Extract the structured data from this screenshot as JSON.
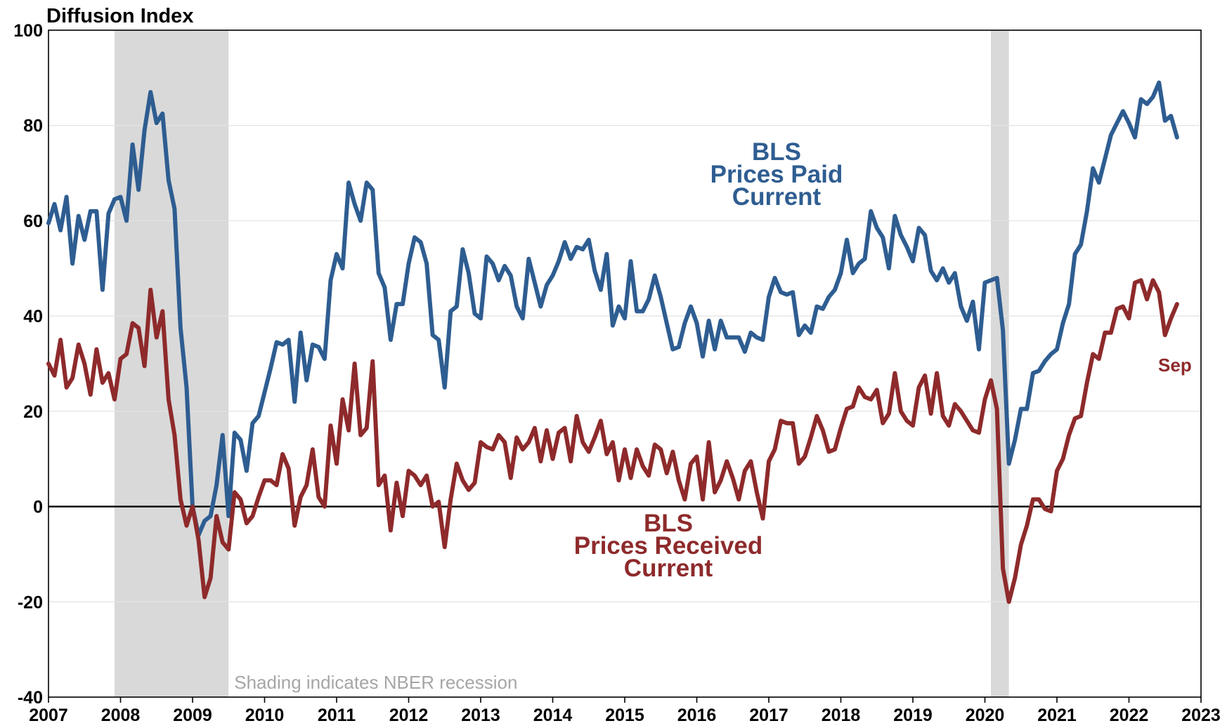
{
  "chart_data": {
    "type": "line",
    "title": "Diffusion Index",
    "xlim": [
      2007,
      2023
    ],
    "xticks": [
      2007,
      2008,
      2009,
      2010,
      2011,
      2012,
      2013,
      2014,
      2015,
      2016,
      2017,
      2018,
      2019,
      2020,
      2021,
      2022,
      2023
    ],
    "ylim": [
      -40,
      100
    ],
    "yticks": [
      -40,
      -20,
      0,
      20,
      40,
      60,
      80,
      100
    ],
    "grid": true,
    "recessions": [
      [
        2007.917,
        2009.5
      ],
      [
        2020.083,
        2020.333
      ]
    ],
    "recession_color": "#d9d9d9",
    "note": "Shading indicates NBER recession",
    "x": [
      2007,
      2007.083,
      2007.167,
      2007.25,
      2007.333,
      2007.417,
      2007.5,
      2007.583,
      2007.667,
      2007.75,
      2007.833,
      2007.917,
      2008,
      2008.083,
      2008.167,
      2008.25,
      2008.333,
      2008.417,
      2008.5,
      2008.583,
      2008.667,
      2008.75,
      2008.833,
      2008.917,
      2009,
      2009.083,
      2009.167,
      2009.25,
      2009.333,
      2009.417,
      2009.5,
      2009.583,
      2009.667,
      2009.75,
      2009.833,
      2009.917,
      2010,
      2010.083,
      2010.167,
      2010.25,
      2010.333,
      2010.417,
      2010.5,
      2010.583,
      2010.667,
      2010.75,
      2010.833,
      2010.917,
      2011,
      2011.083,
      2011.167,
      2011.25,
      2011.333,
      2011.417,
      2011.5,
      2011.583,
      2011.667,
      2011.75,
      2011.833,
      2011.917,
      2012,
      2012.083,
      2012.167,
      2012.25,
      2012.333,
      2012.417,
      2012.5,
      2012.583,
      2012.667,
      2012.75,
      2012.833,
      2012.917,
      2013,
      2013.083,
      2013.167,
      2013.25,
      2013.333,
      2013.417,
      2013.5,
      2013.583,
      2013.667,
      2013.75,
      2013.833,
      2013.917,
      2014,
      2014.083,
      2014.167,
      2014.25,
      2014.333,
      2014.417,
      2014.5,
      2014.583,
      2014.667,
      2014.75,
      2014.833,
      2014.917,
      2015,
      2015.083,
      2015.167,
      2015.25,
      2015.333,
      2015.417,
      2015.5,
      2015.583,
      2015.667,
      2015.75,
      2015.833,
      2015.917,
      2016,
      2016.083,
      2016.167,
      2016.25,
      2016.333,
      2016.417,
      2016.5,
      2016.583,
      2016.667,
      2016.75,
      2016.833,
      2016.917,
      2017,
      2017.083,
      2017.167,
      2017.25,
      2017.333,
      2017.417,
      2017.5,
      2017.583,
      2017.667,
      2017.75,
      2017.833,
      2017.917,
      2018,
      2018.083,
      2018.167,
      2018.25,
      2018.333,
      2018.417,
      2018.5,
      2018.583,
      2018.667,
      2018.75,
      2018.833,
      2018.917,
      2019,
      2019.083,
      2019.167,
      2019.25,
      2019.333,
      2019.417,
      2019.5,
      2019.583,
      2019.667,
      2019.75,
      2019.833,
      2019.917,
      2020,
      2020.083,
      2020.167,
      2020.25,
      2020.333,
      2020.417,
      2020.5,
      2020.583,
      2020.667,
      2020.75,
      2020.833,
      2020.917,
      2021,
      2021.083,
      2021.167,
      2021.25,
      2021.333,
      2021.417,
      2021.5,
      2021.583,
      2021.667,
      2021.75,
      2021.833,
      2021.917,
      2022,
      2022.083,
      2022.167,
      2022.25,
      2022.333,
      2022.417,
      2022.5,
      2022.583,
      2022.667
    ],
    "series": [
      {
        "name": [
          "BLS",
          "Prices Paid",
          "Current"
        ],
        "color": "#2e5d91",
        "values": [
          59.5,
          63.5,
          58,
          65,
          51,
          61,
          56,
          62,
          62,
          45.5,
          61.5,
          64.5,
          65,
          60,
          76,
          66.5,
          79,
          87,
          80.5,
          82.5,
          68.5,
          62.5,
          37.5,
          25,
          0,
          -6,
          -3,
          -2,
          4.5,
          15,
          -2,
          15.5,
          14,
          7.5,
          17.5,
          19,
          24,
          29,
          34.5,
          34,
          35,
          22,
          36.5,
          26.5,
          34,
          33.5,
          31,
          47.5,
          53,
          50,
          68,
          63.5,
          60,
          68,
          66.5,
          49,
          46,
          35,
          42.5,
          42.5,
          51,
          56.5,
          55.5,
          51,
          36,
          35,
          25,
          41,
          42,
          54,
          49,
          40.5,
          39.5,
          52.5,
          51,
          47.5,
          50.5,
          48.5,
          42,
          39.5,
          52,
          47,
          42,
          46.5,
          48.5,
          51.5,
          55.5,
          52,
          54.5,
          54,
          56,
          49.5,
          45.5,
          53,
          38,
          42,
          39.5,
          51.5,
          41,
          41,
          43.5,
          48.5,
          44,
          38.5,
          33,
          33.5,
          38.5,
          42,
          38.5,
          31.5,
          39,
          33,
          39,
          35.5,
          35.5,
          35.5,
          32.5,
          36.5,
          35.5,
          35,
          44,
          48,
          45,
          44.5,
          45,
          36,
          38,
          36.5,
          42,
          41.5,
          44,
          45.5,
          49,
          56,
          49,
          51,
          52,
          62,
          58.5,
          56.5,
          50,
          61,
          57,
          54.5,
          51.5,
          58.5,
          57,
          49.5,
          47.5,
          50,
          47,
          49,
          42,
          39,
          43,
          33,
          47,
          47.5,
          48,
          37,
          9,
          14,
          20.5,
          20.5,
          28,
          28.5,
          30.5,
          32,
          33,
          38.5,
          42.5,
          53,
          55,
          62,
          71,
          68,
          73,
          78,
          80.5,
          83,
          80.5,
          77.5,
          85.5,
          84.5,
          86,
          89,
          81,
          82,
          77.5
        ]
      },
      {
        "name": [
          "BLS",
          "Prices Received",
          "Current"
        ],
        "color": "#8e2a2b",
        "end_label": "Sep",
        "values": [
          30,
          27.5,
          35,
          25,
          27,
          34,
          30,
          23.5,
          33,
          26,
          28,
          22.5,
          31,
          32,
          38.5,
          37.5,
          29.5,
          45.5,
          35.5,
          41,
          22.5,
          15,
          1.5,
          -4,
          0,
          -7,
          -19,
          -15,
          -2,
          -7.5,
          -9,
          3,
          1.5,
          -3.5,
          -2,
          2,
          5.5,
          5.5,
          4.5,
          11,
          8,
          -4,
          2,
          4.5,
          12,
          2,
          0,
          17,
          9,
          22.5,
          16,
          30,
          15,
          16.5,
          30.5,
          4.5,
          6.5,
          -5,
          5,
          -2,
          7.5,
          6.5,
          4.5,
          6.5,
          0,
          1,
          -8.5,
          1.5,
          9,
          5.5,
          3.5,
          5,
          13.5,
          12.5,
          12,
          15,
          13.5,
          6,
          14.5,
          12,
          13.5,
          16.5,
          9.5,
          16,
          10,
          15.5,
          16.5,
          9.5,
          19,
          13.5,
          11.5,
          14.5,
          18,
          11,
          13.5,
          5.5,
          12,
          6,
          12,
          8.5,
          6.5,
          13,
          12,
          7,
          11.5,
          5.5,
          1.5,
          9,
          10.5,
          1.5,
          13.5,
          3,
          5.5,
          9.5,
          6,
          1.5,
          7.5,
          9.5,
          3,
          -2.5,
          9.5,
          12,
          18,
          17.5,
          17.5,
          9,
          10.5,
          14.5,
          19,
          16,
          11.5,
          12,
          16.5,
          20.5,
          21,
          25,
          23,
          22.5,
          24.5,
          17.5,
          19.5,
          28,
          20,
          18,
          17,
          25,
          27.5,
          19.5,
          28,
          19,
          17,
          21.5,
          20,
          18,
          16,
          15.5,
          22.5,
          26.5,
          20.5,
          -13,
          -20,
          -15,
          -8,
          -4,
          1.5,
          1.5,
          -0.5,
          -1,
          7.5,
          10,
          15,
          18.5,
          19,
          26,
          32,
          31,
          36.5,
          36.5,
          41.5,
          42,
          39.5,
          47,
          47.5,
          43.5,
          47.5,
          45,
          36,
          39.5,
          42.5
        ]
      }
    ]
  }
}
